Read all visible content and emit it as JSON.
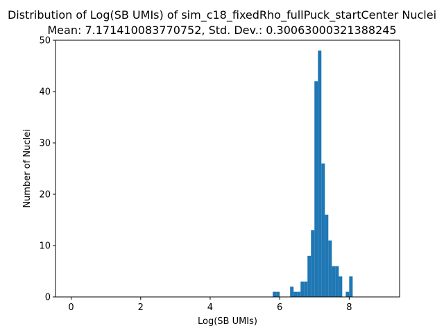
{
  "chart_data": {
    "type": "bar",
    "title": "Distribution of Log(SB UMIs) of sim_c18_fixedRho_fullPuck_startCenter Nuclei",
    "subtitle": "Mean: 7.171410083770752, Std. Dev.: 0.30063000321388245",
    "xlabel": "Log(SB UMIs)",
    "ylabel": "Number of Nuclei",
    "xlim": [
      -0.45,
      9.45
    ],
    "ylim": [
      0,
      50
    ],
    "xticks": [
      0,
      2,
      4,
      6,
      8
    ],
    "yticks": [
      0,
      10,
      20,
      30,
      40,
      50
    ],
    "grid": false,
    "legend": "none",
    "bar_color": "#1f77b4",
    "bin_width": 0.1,
    "bins": [
      {
        "x0": 5.8,
        "x1": 5.9,
        "count": 1
      },
      {
        "x0": 5.9,
        "x1": 6.0,
        "count": 1
      },
      {
        "x0": 6.3,
        "x1": 6.4,
        "count": 2
      },
      {
        "x0": 6.4,
        "x1": 6.5,
        "count": 1
      },
      {
        "x0": 6.5,
        "x1": 6.6,
        "count": 1
      },
      {
        "x0": 6.6,
        "x1": 6.7,
        "count": 3
      },
      {
        "x0": 6.7,
        "x1": 6.8,
        "count": 3
      },
      {
        "x0": 6.8,
        "x1": 6.9,
        "count": 8
      },
      {
        "x0": 6.9,
        "x1": 7.0,
        "count": 13
      },
      {
        "x0": 7.0,
        "x1": 7.1,
        "count": 42
      },
      {
        "x0": 7.1,
        "x1": 7.2,
        "count": 48
      },
      {
        "x0": 7.2,
        "x1": 7.3,
        "count": 26
      },
      {
        "x0": 7.3,
        "x1": 7.4,
        "count": 16
      },
      {
        "x0": 7.4,
        "x1": 7.5,
        "count": 11
      },
      {
        "x0": 7.5,
        "x1": 7.6,
        "count": 6
      },
      {
        "x0": 7.6,
        "x1": 7.7,
        "count": 6
      },
      {
        "x0": 7.7,
        "x1": 7.8,
        "count": 4
      },
      {
        "x0": 7.9,
        "x1": 8.0,
        "count": 1
      },
      {
        "x0": 8.0,
        "x1": 8.1,
        "count": 4
      }
    ]
  }
}
